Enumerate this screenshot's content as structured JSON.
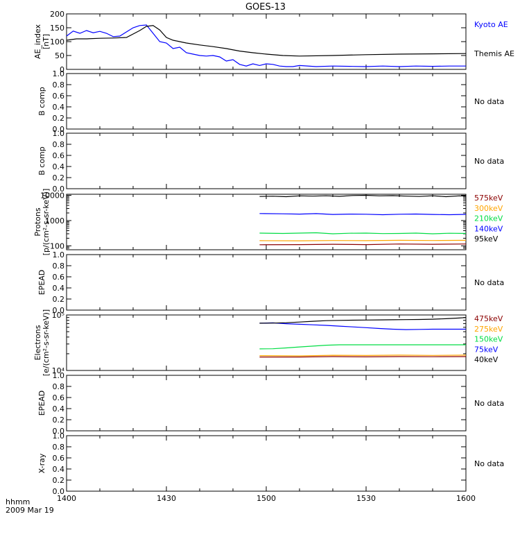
{
  "title": "GOES-13",
  "footer": {
    "time_label": "hhmm",
    "date_label": "2009 Mar 19"
  },
  "x_axis": {
    "ticks": [
      "1400",
      "1430",
      "1500",
      "1530",
      "1600"
    ],
    "range_minutes": [
      0,
      120
    ],
    "tick_minutes": [
      0,
      30,
      60,
      90,
      120
    ]
  },
  "chart_data": [
    {
      "type": "line",
      "panel": "ae",
      "ylabel": [
        "AE_index",
        "[nT]"
      ],
      "ylim": [
        0,
        200
      ],
      "yticks": [
        "0",
        "50",
        "100",
        "150",
        "200"
      ],
      "log": false,
      "series": [
        {
          "name": "Kyoto AE",
          "color": "#0000ff",
          "x": [
            0,
            2,
            4,
            6,
            8,
            10,
            12,
            14,
            16,
            18,
            20,
            22,
            24,
            26,
            28,
            30,
            32,
            34,
            36,
            38,
            40,
            42,
            44,
            46,
            48,
            50,
            52,
            54,
            56,
            58,
            60,
            62,
            64,
            66,
            68,
            70,
            75,
            80,
            85,
            90,
            95,
            100,
            105,
            110,
            115,
            120
          ],
          "values": [
            120,
            138,
            130,
            140,
            132,
            137,
            130,
            118,
            120,
            135,
            150,
            158,
            160,
            130,
            100,
            95,
            75,
            80,
            60,
            55,
            50,
            48,
            50,
            45,
            30,
            35,
            18,
            12,
            20,
            14,
            20,
            18,
            12,
            10,
            10,
            14,
            10,
            12,
            11,
            10,
            12,
            10,
            12,
            11,
            12,
            12
          ]
        },
        {
          "name": "Themis AE",
          "color": "#000000",
          "x": [
            0,
            3,
            6,
            10,
            14,
            18,
            22,
            24,
            26,
            28,
            30,
            32,
            34,
            36,
            40,
            44,
            48,
            52,
            56,
            60,
            65,
            70,
            80,
            90,
            100,
            110,
            120
          ],
          "values": [
            105,
            110,
            110,
            112,
            113,
            115,
            140,
            155,
            158,
            142,
            115,
            105,
            100,
            95,
            88,
            82,
            75,
            66,
            60,
            55,
            50,
            48,
            50,
            53,
            55,
            56,
            57
          ]
        }
      ]
    },
    {
      "type": "line",
      "panel": "bcomp1",
      "ylabel": [
        "B comp"
      ],
      "ylim": [
        0,
        1
      ],
      "yticks": [
        "0.0",
        "0.2",
        "0.4",
        "0.6",
        "0.8",
        "1.0"
      ],
      "log": false,
      "note": "No data",
      "series": []
    },
    {
      "type": "line",
      "panel": "bcomp2",
      "ylabel": [
        "B comp"
      ],
      "ylim": [
        0,
        1
      ],
      "yticks": [
        "0.0",
        "0.2",
        "0.4",
        "0.6",
        "0.8",
        "1.0"
      ],
      "log": false,
      "note": "No data",
      "series": []
    },
    {
      "type": "line",
      "panel": "protons",
      "ylabel": [
        "Protons",
        "[p/(cm²-s-sr-keV)]"
      ],
      "ylim": [
        70,
        11000
      ],
      "yticks": [
        "100",
        "1000",
        "10000"
      ],
      "ytick_values": [
        100,
        1000,
        10000
      ],
      "log": true,
      "series": [
        {
          "name": "575keV",
          "color": "#8b0000",
          "x": [
            58,
            70,
            80,
            90,
            100,
            110,
            120
          ],
          "values": [
            110,
            112,
            115,
            112,
            118,
            115,
            118
          ]
        },
        {
          "name": "300keV",
          "color": "#ffa500",
          "x": [
            58,
            70,
            80,
            90,
            100,
            110,
            120
          ],
          "values": [
            160,
            158,
            162,
            160,
            165,
            162,
            165
          ]
        },
        {
          "name": "210keV",
          "color": "#00dd44",
          "x": [
            58,
            65,
            70,
            75,
            80,
            85,
            90,
            95,
            100,
            105,
            110,
            115,
            120
          ],
          "values": [
            320,
            310,
            320,
            330,
            300,
            315,
            320,
            305,
            310,
            320,
            300,
            315,
            310
          ]
        },
        {
          "name": "140keV",
          "color": "#0000ff",
          "x": [
            58,
            65,
            70,
            75,
            80,
            85,
            90,
            95,
            100,
            105,
            110,
            115,
            120
          ],
          "values": [
            1900,
            1850,
            1800,
            1880,
            1750,
            1800,
            1780,
            1700,
            1780,
            1820,
            1750,
            1700,
            1760
          ]
        },
        {
          "name": "95keV",
          "color": "#000000",
          "x": [
            58,
            62,
            66,
            70,
            74,
            78,
            82,
            86,
            90,
            94,
            98,
            102,
            106,
            110,
            114,
            118,
            120
          ],
          "values": [
            9000,
            9200,
            8800,
            9500,
            9300,
            9600,
            9100,
            9800,
            10000,
            9500,
            9700,
            9300,
            9000,
            9600,
            8800,
            9500,
            9300
          ]
        }
      ]
    },
    {
      "type": "line",
      "panel": "epead1",
      "ylabel": [
        "EPEAD"
      ],
      "ylim": [
        0,
        1
      ],
      "yticks": [
        "0.0",
        "0.2",
        "0.4",
        "0.6",
        "0.8",
        "1.0"
      ],
      "log": false,
      "note": "No data",
      "series": []
    },
    {
      "type": "line",
      "panel": "electrons",
      "ylabel": [
        "Electrons",
        "[e/(cm²-s-sr-keV)]"
      ],
      "ylim": [
        10000,
        100000
      ],
      "yticks": [
        "10⁴",
        "10⁵"
      ],
      "ytick_values": [
        10000,
        100000
      ],
      "log": true,
      "series": [
        {
          "name": "475keV",
          "color": "#8b0000",
          "x": [
            58,
            70,
            80,
            90,
            100,
            110,
            120
          ],
          "values": [
            17500,
            17500,
            17800,
            17600,
            17800,
            17700,
            17800
          ]
        },
        {
          "name": "275keV",
          "color": "#ffa500",
          "x": [
            58,
            70,
            80,
            90,
            100,
            110,
            120
          ],
          "values": [
            18500,
            18300,
            18800,
            18600,
            18900,
            18700,
            18900
          ]
        },
        {
          "name": "150keV",
          "color": "#00dd44",
          "x": [
            58,
            62,
            66,
            70,
            74,
            78,
            82,
            86,
            90,
            100,
            110,
            120
          ],
          "values": [
            24500,
            24600,
            25500,
            26500,
            27500,
            28500,
            29000,
            29000,
            29000,
            29000,
            29000,
            29000
          ]
        },
        {
          "name": "75keV",
          "color": "#0000ff",
          "x": [
            58,
            62,
            66,
            70,
            74,
            78,
            82,
            86,
            90,
            94,
            98,
            102,
            106,
            110,
            120
          ],
          "values": [
            71000,
            72000,
            69500,
            68000,
            66500,
            65000,
            63000,
            61000,
            59000,
            57000,
            55500,
            54500,
            55000,
            55500,
            55500
          ]
        },
        {
          "name": "40keV",
          "color": "#000000",
          "x": [
            58,
            62,
            66,
            70,
            74,
            78,
            82,
            86,
            90,
            94,
            98,
            102,
            106,
            110,
            114,
            118,
            120
          ],
          "values": [
            71000,
            71500,
            72500,
            74500,
            77000,
            79000,
            80000,
            80500,
            81000,
            81500,
            82000,
            82500,
            83000,
            84000,
            85500,
            88000,
            90000
          ]
        }
      ]
    },
    {
      "type": "line",
      "panel": "epead2",
      "ylabel": [
        "EPEAD"
      ],
      "ylim": [
        0,
        1
      ],
      "yticks": [
        "0.0",
        "0.2",
        "0.4",
        "0.6",
        "0.8",
        "1.0"
      ],
      "log": false,
      "note": "No data",
      "series": []
    },
    {
      "type": "line",
      "panel": "xray",
      "ylabel": [
        "X-ray"
      ],
      "ylim": [
        0,
        1
      ],
      "yticks": [
        "0.0",
        "0.2",
        "0.4",
        "0.6",
        "0.8",
        "1.0"
      ],
      "log": false,
      "note": "No data",
      "series": []
    }
  ]
}
